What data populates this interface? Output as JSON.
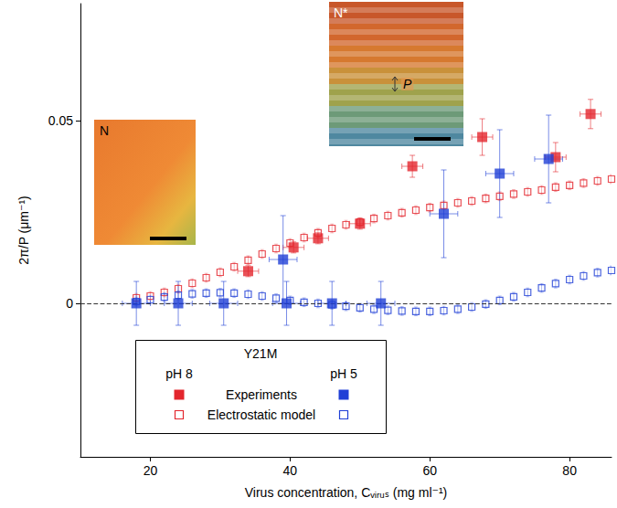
{
  "chart_data": {
    "type": "scatter",
    "x_label": "Virus concentration, Cᵥᵢᵣᵤₛ (mg ml⁻¹)",
    "y_label": "2π/P (μm⁻¹)",
    "xlim": [
      10,
      86
    ],
    "xticks": [
      20,
      40,
      60,
      80
    ],
    "ylim": [
      -0.042,
      0.082
    ],
    "yticks": [
      0,
      0.05
    ],
    "grid": false,
    "legend": "lower left",
    "legend_title": "Y21M",
    "hlines": [
      {
        "y": 0,
        "line_style": "dashed",
        "color": "#333333"
      }
    ],
    "insets": [
      {
        "label": "N"
      },
      {
        "label": "N*",
        "annotation": "P"
      }
    ],
    "series": [
      {
        "name": "Experiments",
        "group": "pH 8",
        "color": "#e3262d",
        "marker": "square",
        "x": [
          34,
          40.5,
          44,
          50,
          57.5,
          67.5,
          78,
          83
        ],
        "values": [
          0.0088,
          0.0153,
          0.0178,
          0.0218,
          0.0375,
          0.0455,
          0.04,
          0.0518
        ],
        "x_error": [
          1.5,
          1.5,
          1.5,
          1.5,
          1.5,
          1.5,
          1.5,
          1.5
        ],
        "y_error": [
          0.0015,
          0.0015,
          0.0015,
          0.0015,
          0.003,
          0.005,
          0.004,
          0.004
        ]
      },
      {
        "name": "Experiments",
        "group": "pH 5",
        "color": "#1f3fd6",
        "marker": "square",
        "x": [
          18,
          24,
          30.5,
          39,
          39.5,
          46,
          53,
          62,
          70,
          77
        ],
        "values": [
          0,
          0,
          0,
          0.012,
          0,
          0,
          0,
          0.0245,
          0.0355,
          0.0395
        ],
        "x_error": [
          2,
          2,
          2,
          2,
          2,
          2,
          2,
          2,
          2,
          2
        ],
        "y_error": [
          0.006,
          0.006,
          0.006,
          0.012,
          0.006,
          0.006,
          0.006,
          0.012,
          0.012,
          0.012
        ]
      },
      {
        "name": "Electrostatic model",
        "group": "pH 8",
        "color": "#e3262d",
        "marker": "open_square",
        "x": [
          18,
          20,
          22,
          24,
          26,
          28,
          30,
          32,
          34,
          36,
          38,
          40,
          42,
          44,
          46,
          48,
          50,
          52,
          54,
          56,
          58,
          60,
          62,
          64,
          66,
          68,
          70,
          72,
          74,
          76,
          78,
          80,
          82,
          84,
          86
        ],
        "values": [
          0.0015,
          0.002,
          0.003,
          0.004,
          0.0055,
          0.007,
          0.0085,
          0.01,
          0.0118,
          0.0135,
          0.015,
          0.0165,
          0.018,
          0.0193,
          0.0205,
          0.0215,
          0.0222,
          0.0232,
          0.024,
          0.0248,
          0.0255,
          0.0262,
          0.0268,
          0.0275,
          0.028,
          0.0287,
          0.0293,
          0.0299,
          0.0305,
          0.031,
          0.0318,
          0.0323,
          0.0329,
          0.0335,
          0.034
        ],
        "y_error": 0.0012
      },
      {
        "name": "Electrostatic model",
        "group": "pH 5",
        "color": "#1f3fd6",
        "marker": "open_square",
        "x": [
          18,
          20,
          22,
          24,
          26,
          28,
          30,
          32,
          34,
          36,
          38,
          40,
          42,
          44,
          46,
          48,
          50,
          52,
          54,
          56,
          58,
          60,
          62,
          64,
          66,
          68,
          70,
          72,
          74,
          76,
          78,
          80,
          82,
          84,
          86
        ],
        "values": [
          0.0005,
          0.001,
          0.0017,
          0.0022,
          0.0026,
          0.0028,
          0.0029,
          0.0028,
          0.0025,
          0.002,
          0.0014,
          0.0008,
          0.0003,
          0.0,
          -0.0004,
          -0.0008,
          -0.0012,
          -0.0016,
          -0.0019,
          -0.0021,
          -0.0022,
          -0.0022,
          -0.002,
          -0.0016,
          -0.001,
          -0.0002,
          0.0008,
          0.0018,
          0.003,
          0.0042,
          0.0054,
          0.0065,
          0.0075,
          0.0084,
          0.009
        ],
        "y_error": 0.0012
      }
    ]
  }
}
